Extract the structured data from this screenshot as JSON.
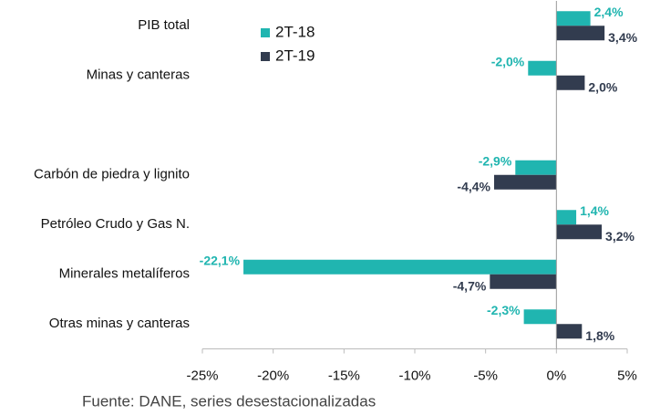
{
  "chart_data": {
    "type": "bar",
    "orientation": "horizontal",
    "categories": [
      "PIB total",
      "Minas y canteras",
      null,
      "Carbón de piedra y lignito",
      "Petróleo Crudo y Gas N.",
      "Minerales metalíferos",
      "Otras minas y canteras"
    ],
    "series": [
      {
        "name": "2T-18",
        "color": "#20b5b0",
        "values": [
          2.4,
          -2.0,
          null,
          -2.9,
          1.4,
          -22.1,
          -2.3
        ],
        "value_labels": [
          "2,4%",
          "-2,0%",
          null,
          "-2,9%",
          "1,4%",
          "-22,1%",
          "-2,3%"
        ]
      },
      {
        "name": "2T-19",
        "color": "#323c4f",
        "values": [
          3.4,
          2.0,
          null,
          -4.4,
          3.2,
          -4.7,
          1.8
        ],
        "value_labels": [
          "3,4%",
          "2,0%",
          null,
          "-4,4%",
          "3,2%",
          "-4,7%",
          "1,8%"
        ]
      }
    ],
    "xlim": [
      -25,
      5
    ],
    "xticks": [
      {
        "value": -25,
        "label": "-25%"
      },
      {
        "value": -20,
        "label": "-20%"
      },
      {
        "value": -15,
        "label": "-15%"
      },
      {
        "value": -10,
        "label": "-10%"
      },
      {
        "value": -5,
        "label": "-5%"
      },
      {
        "value": 0,
        "label": "0%"
      },
      {
        "value": 5,
        "label": "5%"
      }
    ],
    "source": "Fuente: DANE, series desestacionalizadas"
  }
}
